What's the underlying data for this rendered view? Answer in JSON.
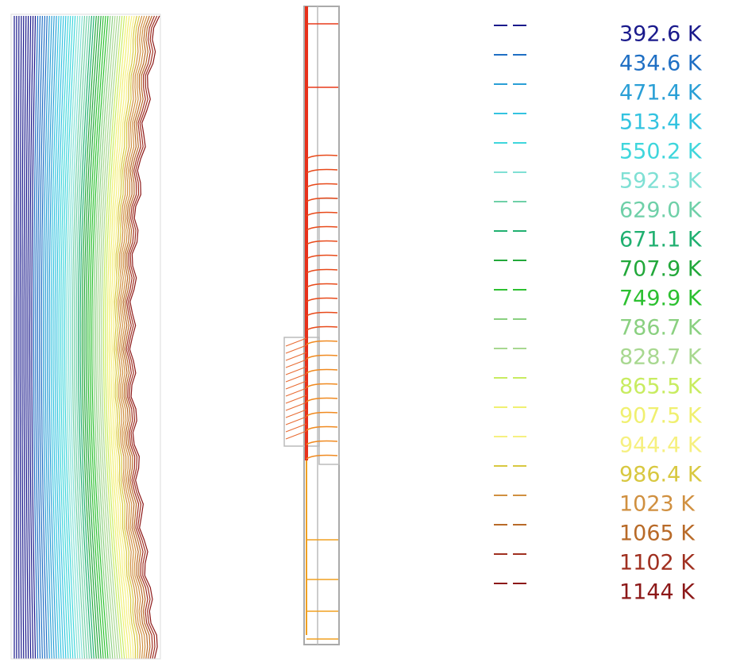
{
  "legend": {
    "entries": [
      {
        "label": "392.6 K",
        "color": "#1a1a8c"
      },
      {
        "label": "434.6 K",
        "color": "#1f6fc4"
      },
      {
        "label": "471.4 K",
        "color": "#2a9fd6"
      },
      {
        "label": "513.4 K",
        "color": "#33c3e0"
      },
      {
        "label": "550.2 K",
        "color": "#3fd6dc"
      },
      {
        "label": "592.3 K",
        "color": "#7fe0d4"
      },
      {
        "label": "629.0 K",
        "color": "#6fd0a8"
      },
      {
        "label": "671.1 K",
        "color": "#20b070"
      },
      {
        "label": "707.9 K",
        "color": "#22a83a"
      },
      {
        "label": "749.9 K",
        "color": "#2cc030"
      },
      {
        "label": "786.7 K",
        "color": "#8ad080"
      },
      {
        "label": "828.7 K",
        "color": "#a8d890"
      },
      {
        "label": "865.5 K",
        "color": "#c8ec60"
      },
      {
        "label": "907.5 K",
        "color": "#f0f070"
      },
      {
        "label": "944.4 K",
        "color": "#f6f080"
      },
      {
        "label": "986.4 K",
        "color": "#d8c840"
      },
      {
        "label": "1023 K",
        "color": "#d09040"
      },
      {
        "label": "1065 K",
        "color": "#b86a28"
      },
      {
        "label": "1102 K",
        "color": "#a03020"
      },
      {
        "label": "1144 K",
        "color": "#8c1818"
      }
    ]
  }
}
